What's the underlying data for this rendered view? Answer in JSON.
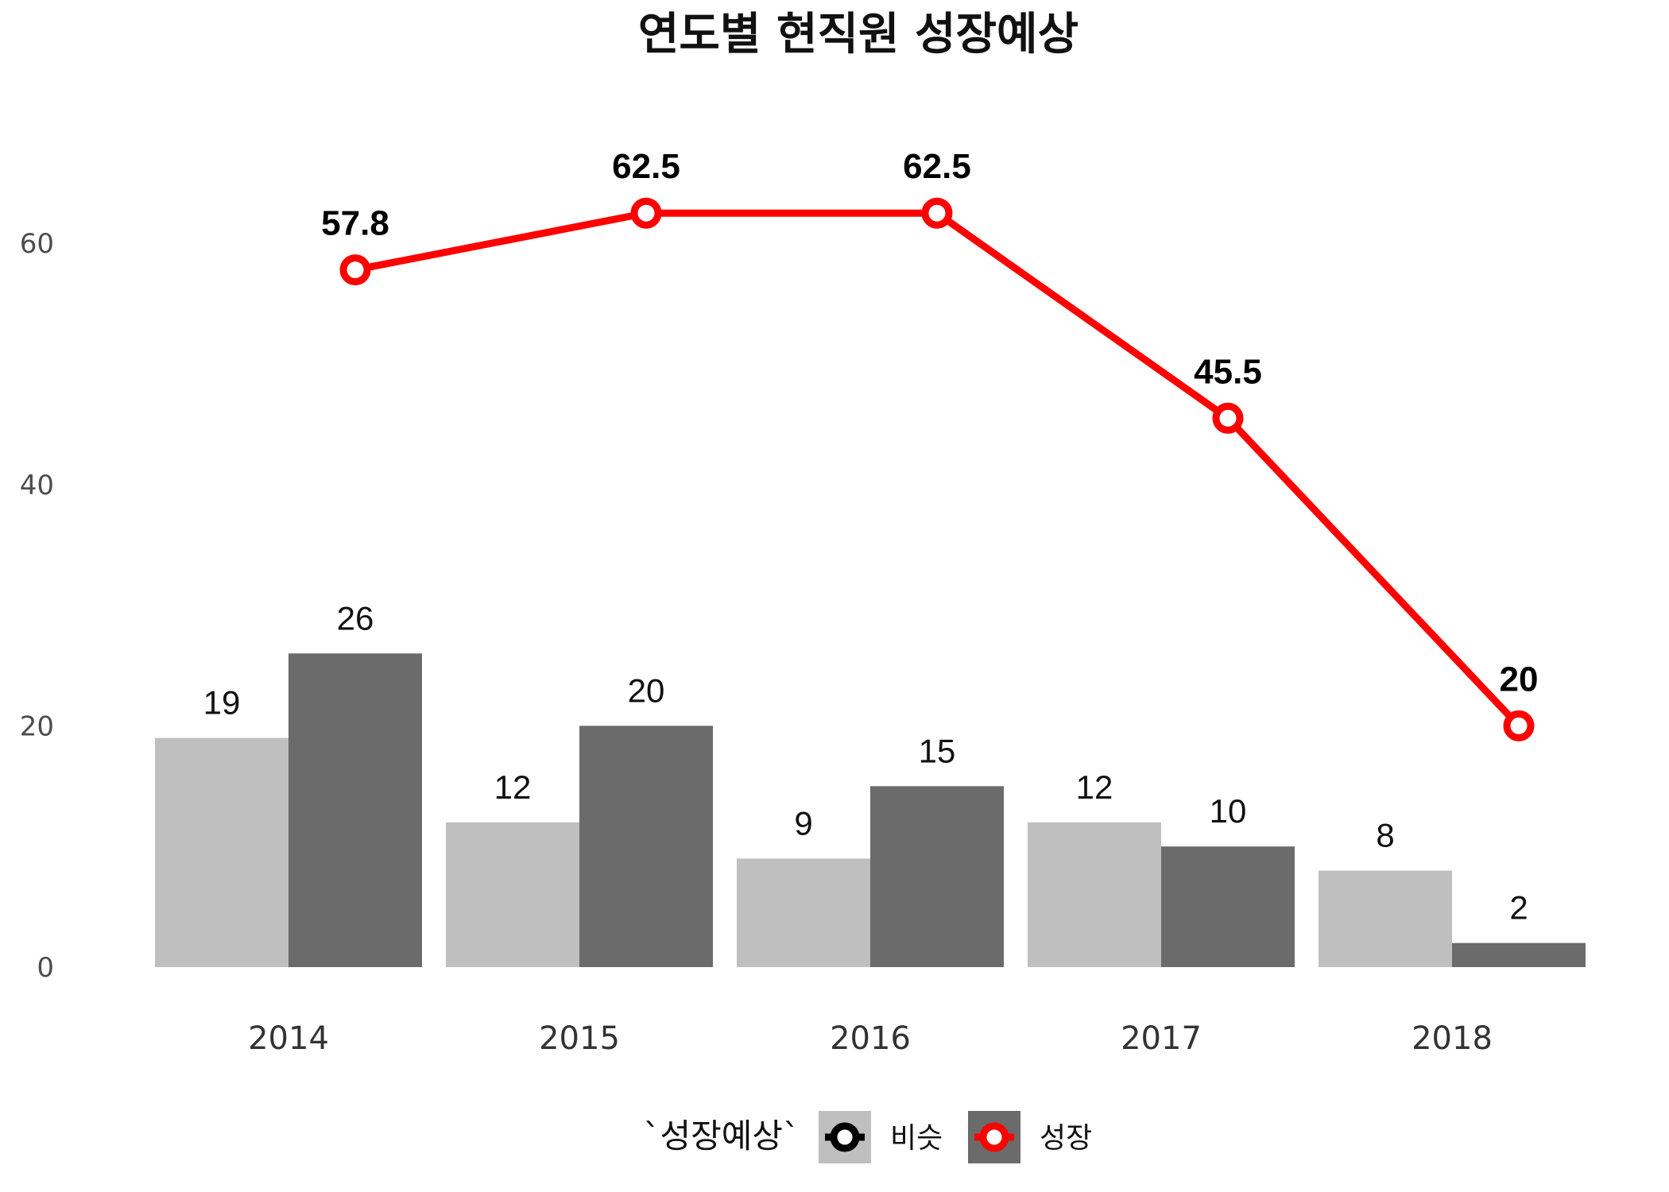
{
  "chart_data": {
    "type": "bar",
    "title": "연도별 현직원 성장예상",
    "xlabel": "",
    "ylabel": "",
    "categories": [
      "2014",
      "2015",
      "2016",
      "2017",
      "2018"
    ],
    "ylim": [
      0,
      72
    ],
    "y_ticks": [
      0,
      20,
      40,
      60
    ],
    "grid": false,
    "legend_position": "bottom",
    "legend_title": "`성장예상`",
    "series": [
      {
        "name": "비슷",
        "type": "bar",
        "values": [
          19,
          12,
          9,
          12,
          8
        ],
        "color": "#bfbfbf",
        "marker_color": "#000000"
      },
      {
        "name": "성장",
        "type": "bar",
        "values": [
          26,
          20,
          15,
          10,
          2
        ],
        "color": "#6b6b6b",
        "marker_color": "#ff0000"
      },
      {
        "type": "line",
        "values": [
          57.8,
          62.5,
          62.5,
          45.5,
          20
        ],
        "color": "#ff0000"
      }
    ]
  }
}
